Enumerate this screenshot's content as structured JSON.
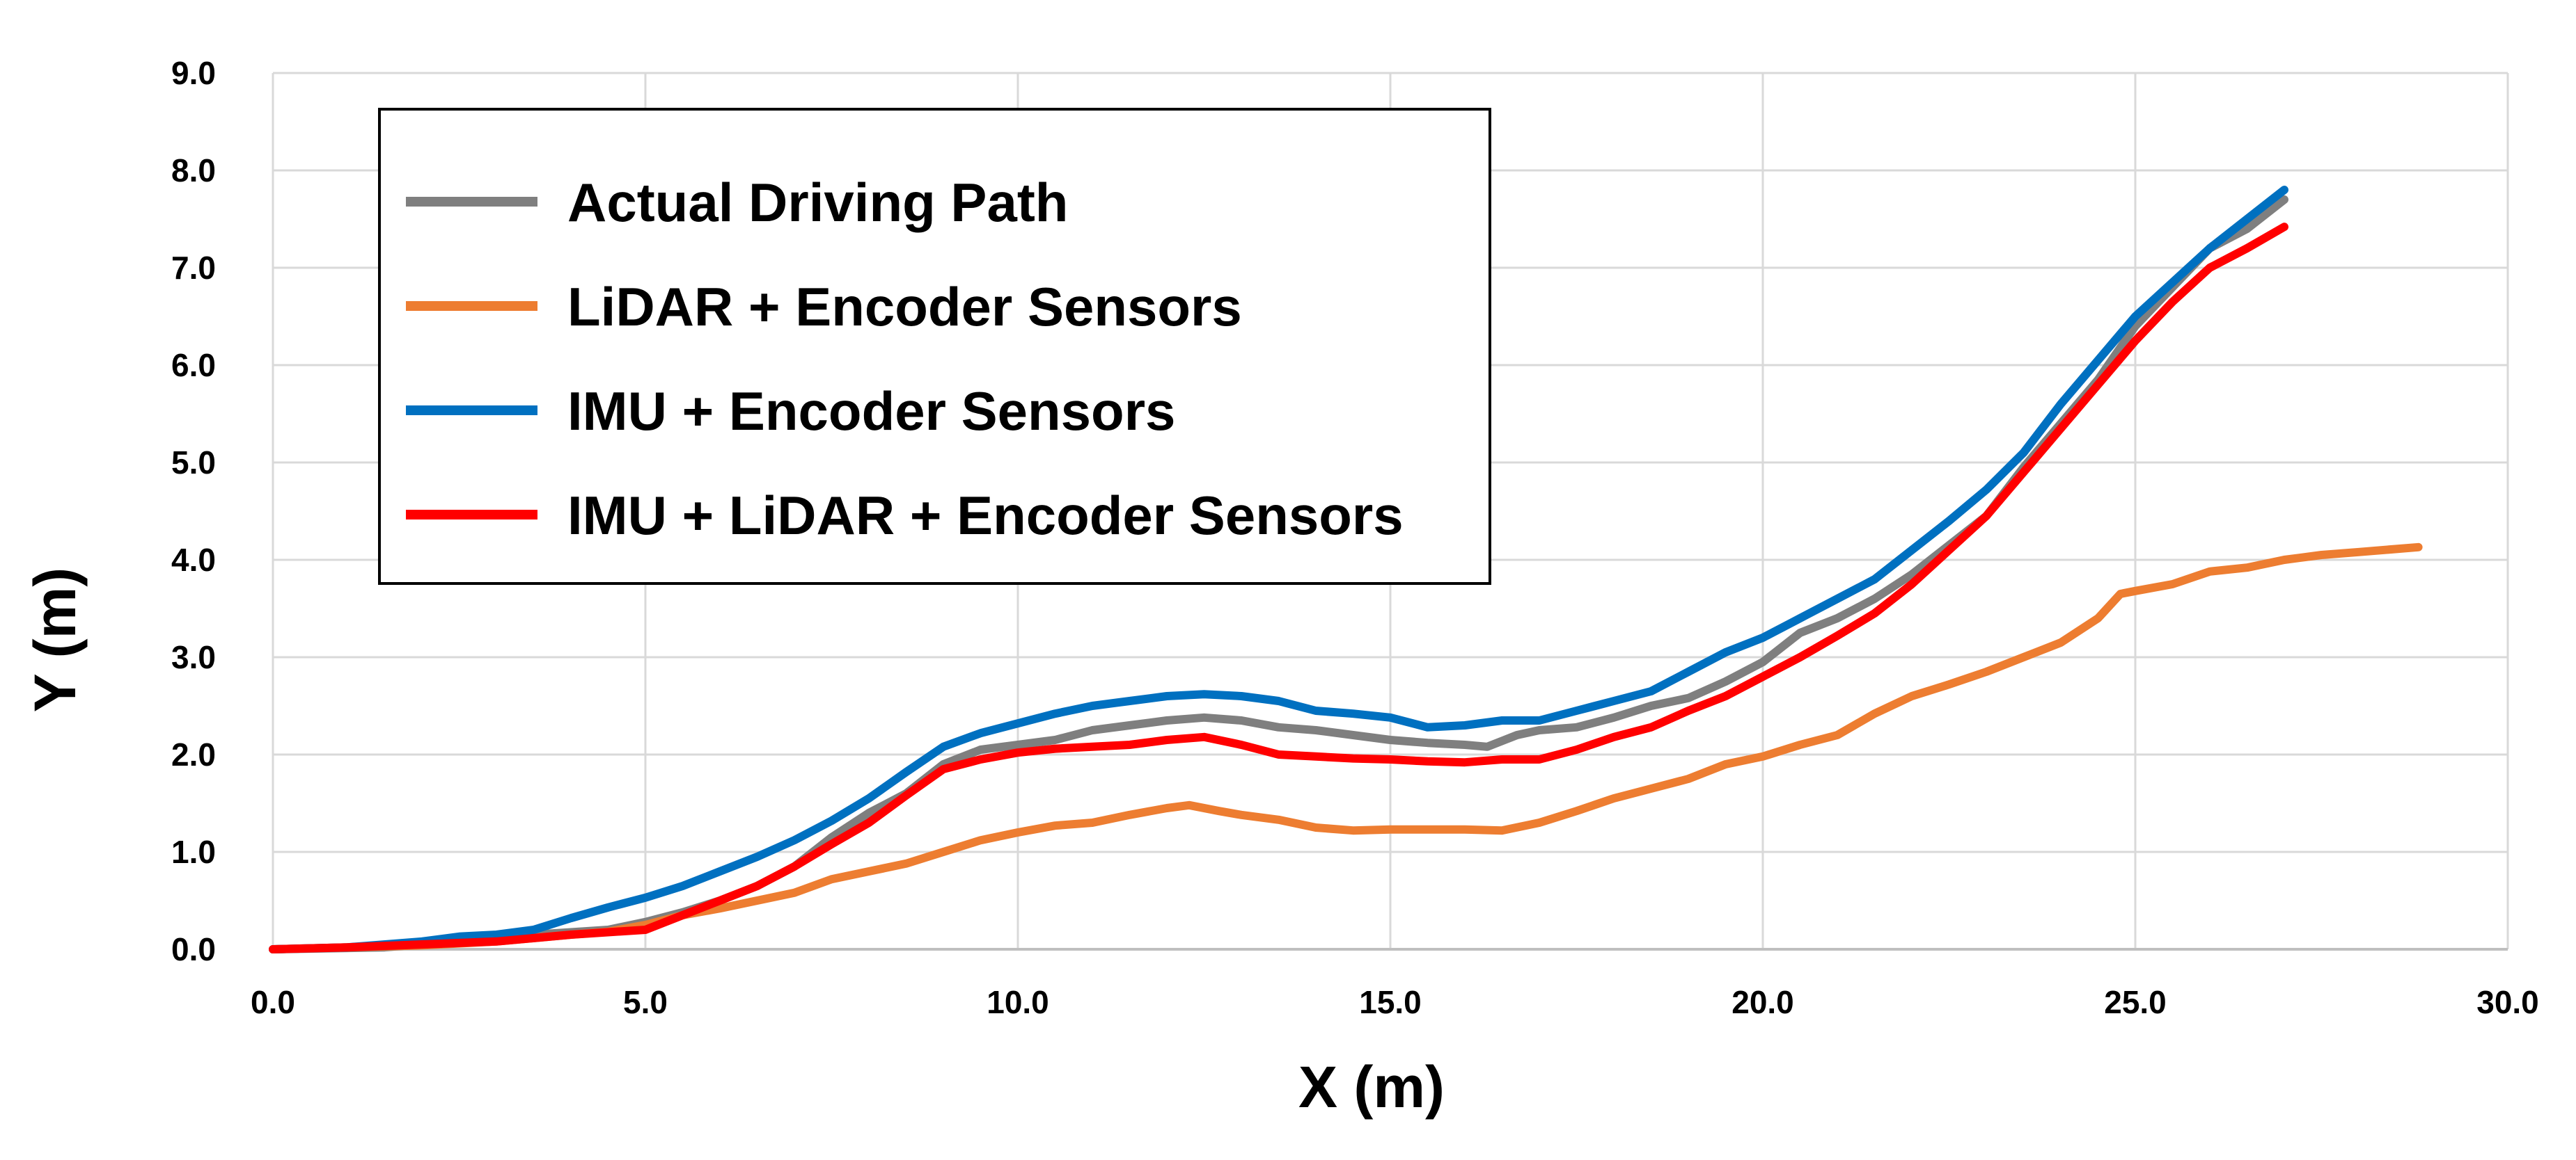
{
  "chart_data": {
    "type": "line",
    "title": "",
    "xlabel": "X (m)",
    "ylabel": "Y (m)",
    "xlim": [
      0,
      30
    ],
    "ylim": [
      0,
      9
    ],
    "x_ticks": [
      "0.0",
      "5.0",
      "10.0",
      "15.0",
      "20.0",
      "25.0",
      "30.0"
    ],
    "y_ticks": [
      "0.0",
      "1.0",
      "2.0",
      "3.0",
      "4.0",
      "5.0",
      "6.0",
      "7.0",
      "8.0",
      "9.0"
    ],
    "grid": true,
    "legend_position": "top-left",
    "series": [
      {
        "name": "Actual Driving Path",
        "color": "#7f7f7f",
        "points": [
          [
            0,
            0
          ],
          [
            1.5,
            0.02
          ],
          [
            2.5,
            0.08
          ],
          [
            3.5,
            0.15
          ],
          [
            4.5,
            0.2
          ],
          [
            5.0,
            0.28
          ],
          [
            5.5,
            0.38
          ],
          [
            6.0,
            0.5
          ],
          [
            6.5,
            0.65
          ],
          [
            7.0,
            0.85
          ],
          [
            7.5,
            1.15
          ],
          [
            8.0,
            1.4
          ],
          [
            8.5,
            1.6
          ],
          [
            9.0,
            1.9
          ],
          [
            9.5,
            2.05
          ],
          [
            10.0,
            2.1
          ],
          [
            10.5,
            2.15
          ],
          [
            11.0,
            2.25
          ],
          [
            11.5,
            2.3
          ],
          [
            12.0,
            2.35
          ],
          [
            12.5,
            2.38
          ],
          [
            13.0,
            2.35
          ],
          [
            13.5,
            2.28
          ],
          [
            14.0,
            2.25
          ],
          [
            14.5,
            2.2
          ],
          [
            15.0,
            2.15
          ],
          [
            15.5,
            2.12
          ],
          [
            16.0,
            2.1
          ],
          [
            16.3,
            2.08
          ],
          [
            16.7,
            2.2
          ],
          [
            17.0,
            2.25
          ],
          [
            17.5,
            2.28
          ],
          [
            18.0,
            2.38
          ],
          [
            18.5,
            2.5
          ],
          [
            19.0,
            2.58
          ],
          [
            19.5,
            2.75
          ],
          [
            20.0,
            2.95
          ],
          [
            20.5,
            3.25
          ],
          [
            21.0,
            3.4
          ],
          [
            21.5,
            3.6
          ],
          [
            22.0,
            3.85
          ],
          [
            22.5,
            4.15
          ],
          [
            23.0,
            4.45
          ],
          [
            23.5,
            4.95
          ],
          [
            24.0,
            5.4
          ],
          [
            24.5,
            5.85
          ],
          [
            25.0,
            6.4
          ],
          [
            25.5,
            6.8
          ],
          [
            26.0,
            7.2
          ],
          [
            26.5,
            7.4
          ],
          [
            27.0,
            7.7
          ]
        ]
      },
      {
        "name": "LiDAR + Encoder Sensors",
        "color": "#ed7d31",
        "points": [
          [
            0,
            0
          ],
          [
            1.0,
            0.02
          ],
          [
            2.0,
            0.04
          ],
          [
            3.0,
            0.08
          ],
          [
            4.0,
            0.15
          ],
          [
            4.5,
            0.18
          ],
          [
            5.0,
            0.25
          ],
          [
            5.5,
            0.35
          ],
          [
            6.0,
            0.42
          ],
          [
            6.5,
            0.5
          ],
          [
            7.0,
            0.58
          ],
          [
            7.5,
            0.72
          ],
          [
            8.0,
            0.8
          ],
          [
            8.5,
            0.88
          ],
          [
            9.0,
            1.0
          ],
          [
            9.5,
            1.12
          ],
          [
            10.0,
            1.2
          ],
          [
            10.5,
            1.27
          ],
          [
            11.0,
            1.3
          ],
          [
            11.5,
            1.38
          ],
          [
            12.0,
            1.45
          ],
          [
            12.3,
            1.48
          ],
          [
            12.7,
            1.42
          ],
          [
            13.0,
            1.38
          ],
          [
            13.5,
            1.33
          ],
          [
            14.0,
            1.25
          ],
          [
            14.5,
            1.22
          ],
          [
            15.0,
            1.23
          ],
          [
            15.5,
            1.23
          ],
          [
            16.0,
            1.23
          ],
          [
            16.5,
            1.22
          ],
          [
            17.0,
            1.3
          ],
          [
            17.5,
            1.42
          ],
          [
            18.0,
            1.55
          ],
          [
            18.5,
            1.65
          ],
          [
            19.0,
            1.75
          ],
          [
            19.5,
            1.9
          ],
          [
            20.0,
            1.98
          ],
          [
            20.5,
            2.1
          ],
          [
            21.0,
            2.2
          ],
          [
            21.5,
            2.42
          ],
          [
            22.0,
            2.6
          ],
          [
            22.5,
            2.72
          ],
          [
            23.0,
            2.85
          ],
          [
            23.5,
            3.0
          ],
          [
            24.0,
            3.15
          ],
          [
            24.5,
            3.4
          ],
          [
            24.8,
            3.65
          ],
          [
            25.0,
            3.68
          ],
          [
            25.5,
            3.75
          ],
          [
            26.0,
            3.88
          ],
          [
            26.5,
            3.92
          ],
          [
            27.0,
            4.0
          ],
          [
            27.5,
            4.05
          ],
          [
            28.0,
            4.08
          ],
          [
            28.8,
            4.13
          ]
        ]
      },
      {
        "name": "IMU + Encoder Sensors",
        "color": "#0070c0",
        "points": [
          [
            0,
            0
          ],
          [
            1.0,
            0.02
          ],
          [
            2.0,
            0.08
          ],
          [
            2.5,
            0.13
          ],
          [
            3.0,
            0.15
          ],
          [
            3.5,
            0.2
          ],
          [
            4.0,
            0.32
          ],
          [
            4.5,
            0.43
          ],
          [
            5.0,
            0.53
          ],
          [
            5.5,
            0.65
          ],
          [
            6.0,
            0.8
          ],
          [
            6.5,
            0.95
          ],
          [
            7.0,
            1.12
          ],
          [
            7.5,
            1.32
          ],
          [
            8.0,
            1.55
          ],
          [
            8.5,
            1.82
          ],
          [
            9.0,
            2.08
          ],
          [
            9.5,
            2.22
          ],
          [
            10.0,
            2.32
          ],
          [
            10.5,
            2.42
          ],
          [
            11.0,
            2.5
          ],
          [
            11.5,
            2.55
          ],
          [
            12.0,
            2.6
          ],
          [
            12.5,
            2.62
          ],
          [
            13.0,
            2.6
          ],
          [
            13.5,
            2.55
          ],
          [
            14.0,
            2.45
          ],
          [
            14.5,
            2.42
          ],
          [
            15.0,
            2.38
          ],
          [
            15.5,
            2.28
          ],
          [
            16.0,
            2.3
          ],
          [
            16.5,
            2.35
          ],
          [
            17.0,
            2.35
          ],
          [
            17.5,
            2.45
          ],
          [
            18.0,
            2.55
          ],
          [
            18.5,
            2.65
          ],
          [
            19.0,
            2.85
          ],
          [
            19.5,
            3.05
          ],
          [
            20.0,
            3.2
          ],
          [
            20.5,
            3.4
          ],
          [
            21.0,
            3.6
          ],
          [
            21.5,
            3.8
          ],
          [
            22.0,
            4.1
          ],
          [
            22.5,
            4.4
          ],
          [
            23.0,
            4.72
          ],
          [
            23.5,
            5.1
          ],
          [
            24.0,
            5.6
          ],
          [
            24.5,
            6.05
          ],
          [
            25.0,
            6.5
          ],
          [
            25.5,
            6.85
          ],
          [
            26.0,
            7.2
          ],
          [
            26.5,
            7.5
          ],
          [
            27.0,
            7.8
          ]
        ]
      },
      {
        "name": "IMU + LiDAR + Encoder Sensors",
        "color": "#ff0000",
        "points": [
          [
            0,
            0
          ],
          [
            1.0,
            0.02
          ],
          [
            2.0,
            0.05
          ],
          [
            3.0,
            0.08
          ],
          [
            4.0,
            0.15
          ],
          [
            5.0,
            0.2
          ],
          [
            5.5,
            0.35
          ],
          [
            6.0,
            0.5
          ],
          [
            6.5,
            0.65
          ],
          [
            7.0,
            0.85
          ],
          [
            7.5,
            1.08
          ],
          [
            8.0,
            1.3
          ],
          [
            8.5,
            1.58
          ],
          [
            9.0,
            1.85
          ],
          [
            9.5,
            1.95
          ],
          [
            10.0,
            2.02
          ],
          [
            10.5,
            2.06
          ],
          [
            11.0,
            2.08
          ],
          [
            11.5,
            2.1
          ],
          [
            12.0,
            2.15
          ],
          [
            12.5,
            2.18
          ],
          [
            13.0,
            2.1
          ],
          [
            13.5,
            2.0
          ],
          [
            14.0,
            1.98
          ],
          [
            14.5,
            1.96
          ],
          [
            15.0,
            1.95
          ],
          [
            15.5,
            1.93
          ],
          [
            16.0,
            1.92
          ],
          [
            16.5,
            1.95
          ],
          [
            17.0,
            1.95
          ],
          [
            17.5,
            2.05
          ],
          [
            18.0,
            2.18
          ],
          [
            18.5,
            2.28
          ],
          [
            19.0,
            2.45
          ],
          [
            19.5,
            2.6
          ],
          [
            20.0,
            2.8
          ],
          [
            20.5,
            3.0
          ],
          [
            21.0,
            3.22
          ],
          [
            21.5,
            3.45
          ],
          [
            22.0,
            3.75
          ],
          [
            22.5,
            4.1
          ],
          [
            23.0,
            4.45
          ],
          [
            23.5,
            4.9
          ],
          [
            24.0,
            5.35
          ],
          [
            24.5,
            5.8
          ],
          [
            25.0,
            6.25
          ],
          [
            25.5,
            6.65
          ],
          [
            26.0,
            7.0
          ],
          [
            26.5,
            7.2
          ],
          [
            27.0,
            7.42
          ]
        ]
      }
    ]
  }
}
